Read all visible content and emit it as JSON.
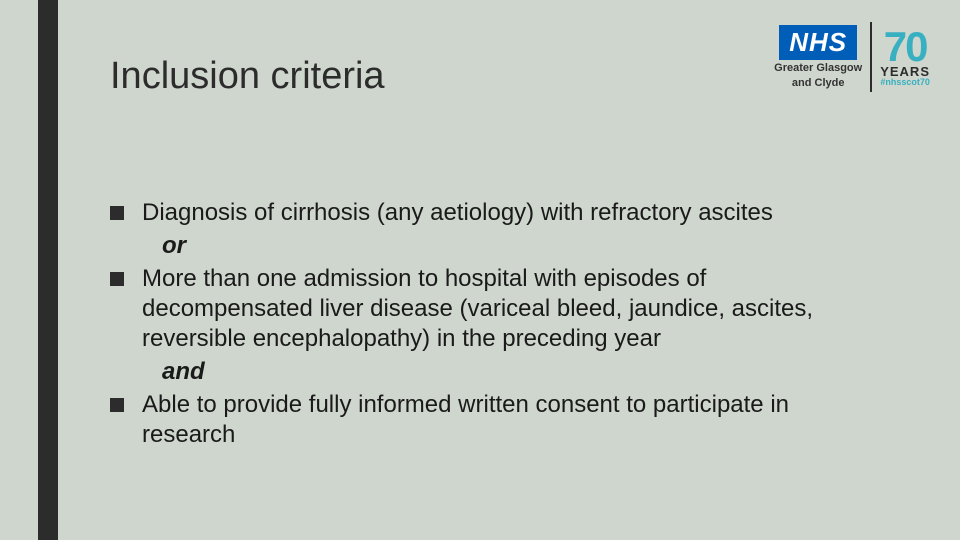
{
  "slide": {
    "background_color": "#cfd6cd",
    "accent_bar_color": "#2c2c2c",
    "title": "Inclusion criteria",
    "title_color": "#2c2c2c",
    "title_fontsize": 38,
    "bullets": [
      {
        "text": "Diagnosis of cirrhosis (any aetiology) with refractory ascites",
        "connector_after": "or"
      },
      {
        "text": "More than one admission to hospital with episodes of decompensated liver disease (variceal bleed, jaundice, ascites, reversible encephalopathy) in the preceding year",
        "connector_after": "and"
      },
      {
        "text": "Able to provide fully informed written consent to participate in research",
        "connector_after": null
      }
    ],
    "bullet_fontsize": 24,
    "bullet_marker_color": "#2c2c2c",
    "text_color": "#1a1a1a"
  },
  "logo": {
    "nhs_text": "NHS",
    "nhs_bg": "#005eb8",
    "nhs_sub1": "Greater Glasgow",
    "nhs_sub2": "and Clyde",
    "seventy": "70",
    "seventy_color": "#39b0c1",
    "years": "YEARS",
    "hashtag": "#nhsscot70"
  }
}
